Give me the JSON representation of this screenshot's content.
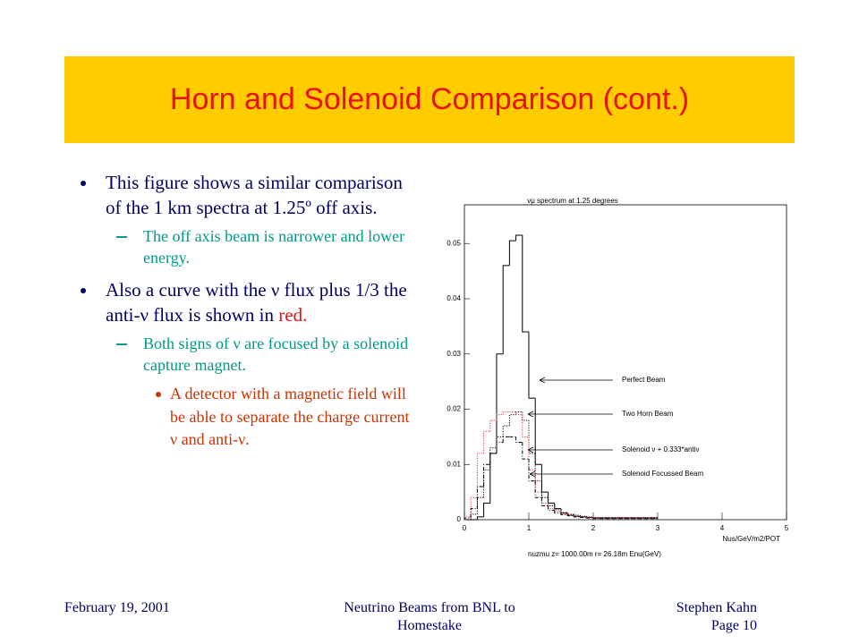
{
  "header": {
    "title": "Horn and Solenoid Comparison (cont.)"
  },
  "bullets": [
    {
      "text": "This figure shows a similar comparison of the 1 km spectra at 1.25º off axis.",
      "sub": [
        {
          "text": "The off axis beam is narrower and lower energy."
        }
      ]
    },
    {
      "parts": [
        "Also a curve with the ν flux plus 1/3 the anti-ν flux is shown in ",
        "red."
      ],
      "sub": [
        {
          "text": "Both signs of ν are focused by a solenoid capture magnet.",
          "sub": [
            {
              "text": "A detector with a magnetic field will be able to separate the charge current ν and anti-ν."
            }
          ]
        }
      ]
    }
  ],
  "chart_data": {
    "type": "histogram",
    "title": "νμ spectrum at 1.25 degrees",
    "x_label": "Nus/GeV/m2/POT",
    "annotation": "nuzmu z= 1000.00m r= 26.18m Enu(GeV)",
    "bins": [
      0,
      0.1,
      0.2,
      0.3,
      0.4,
      0.5,
      0.6,
      0.7,
      0.8,
      0.9,
      1.0,
      1.1,
      1.2,
      1.3,
      1.4,
      1.5,
      1.6,
      1.7,
      1.8,
      1.9,
      2.0,
      2.1,
      2.2,
      2.3,
      2.4,
      2.5,
      2.6,
      2.7,
      2.8,
      2.9,
      3.0
    ],
    "series": [
      {
        "name": "Perfect Beam",
        "color": "#000000",
        "line_style": "solid",
        "values": [
          0,
          0,
          0.0005,
          0.003,
          0.012,
          0.03,
          0.046,
          0.0505,
          0.0515,
          0.034,
          0.022,
          0.01,
          0.005,
          0.003,
          0.002,
          0.0012,
          0.0008,
          0.0006,
          0.0005,
          0.0004,
          0.0003,
          0.0003,
          0.0003,
          0.0003,
          0.0003,
          0.0003,
          0.0003,
          0.0003,
          0.0003,
          0.0003
        ]
      },
      {
        "name": "Two Horn Beam",
        "color": "#000000",
        "line_style": "dotted",
        "values": [
          0,
          0.001,
          0.004,
          0.009,
          0.013,
          0.015,
          0.017,
          0.019,
          0.0195,
          0.018,
          0.012,
          0.007,
          0.004,
          0.0025,
          0.0018,
          0.0013,
          0.001,
          0.0008,
          0.0006,
          0.0005,
          0.0004,
          0.0004,
          0.0004,
          0.0004,
          0.0004,
          0.0004,
          0.0004,
          0.0004,
          0.0004,
          0.0004
        ]
      },
      {
        "name": "Solenoid ν + 0.333*antiν",
        "color": "#e8303a",
        "line_style": "dotted",
        "values": [
          0.0005,
          0.004,
          0.012,
          0.016,
          0.018,
          0.019,
          0.0195,
          0.0195,
          0.019,
          0.015,
          0.009,
          0.005,
          0.003,
          0.002,
          0.0015,
          0.001,
          0.0008,
          0.0006,
          0.0005,
          0.0004,
          0.0003,
          0.0003,
          0.0003,
          0.0003,
          0.0003,
          0.0003,
          0.0003,
          0.0003,
          0.0003,
          0.0003
        ]
      },
      {
        "name": "Solenoid Focussed Beam",
        "color": "#000000",
        "line_style": "dashdot",
        "values": [
          0.0003,
          0.002,
          0.006,
          0.01,
          0.012,
          0.014,
          0.015,
          0.015,
          0.014,
          0.011,
          0.007,
          0.004,
          0.0025,
          0.0017,
          0.0012,
          0.0009,
          0.0007,
          0.0005,
          0.0004,
          0.0003,
          0.0002,
          0.0002,
          0.0002,
          0.0002,
          0.0002,
          0.0002,
          0.0002,
          0.0002,
          0.0002,
          0.0002
        ]
      }
    ],
    "xlim": [
      0,
      5
    ],
    "xticks": [
      0,
      1,
      2,
      3,
      4,
      5
    ],
    "ylim": [
      0,
      0.057
    ],
    "yticks": [
      0,
      0.01,
      0.02,
      0.03,
      0.04,
      0.05
    ],
    "grid": false
  },
  "footer": {
    "date": "February 19, 2001",
    "center": "Neutrino Beams from BNL to Homestake",
    "author": "Stephen Kahn",
    "page": "Page 10"
  }
}
